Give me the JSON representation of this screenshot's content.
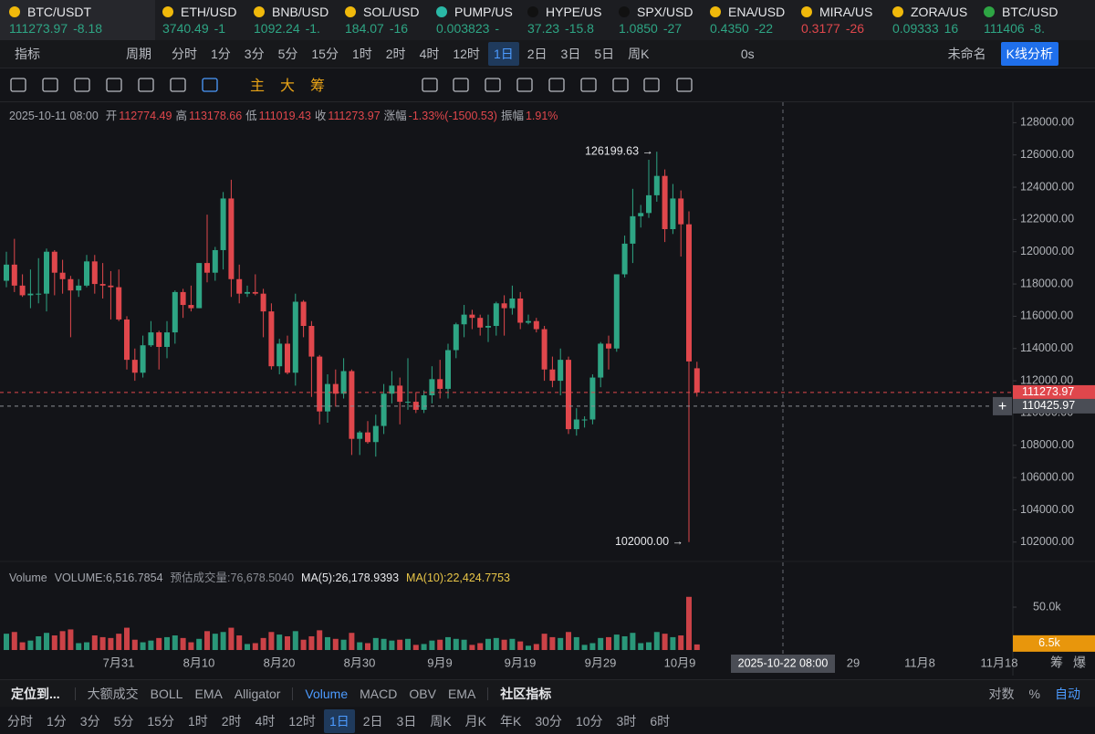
{
  "tickers": [
    {
      "name": "BTC/USDT",
      "price": "111273.97",
      "change": "-8.18",
      "color": "#2ea584"
    },
    {
      "name": "ETH/USD",
      "price": "3740.49",
      "change": "-1",
      "color": "#2ea584"
    },
    {
      "name": "BNB/USD",
      "price": "1092.24",
      "change": "-1.",
      "color": "#2ea584"
    },
    {
      "name": "SOL/USD",
      "price": "184.07",
      "change": "-16",
      "color": "#2ea584"
    },
    {
      "name": "PUMP/US",
      "price": "0.003823",
      "change": "-",
      "color": "#2ea584"
    },
    {
      "name": "HYPE/US",
      "price": "37.23",
      "change": "-15.8",
      "color": "#2ea584"
    },
    {
      "name": "SPX/USD",
      "price": "1.0850",
      "change": "-27",
      "color": "#2ea584"
    },
    {
      "name": "ENA/USD",
      "price": "0.4350",
      "change": "-22",
      "color": "#2ea584"
    },
    {
      "name": "MIRA/US",
      "price": "0.3177",
      "change": "-26",
      "color": "#e0474c"
    },
    {
      "name": "ZORA/US",
      "price": "0.09333",
      "change": "16",
      "color": "#2ea584"
    },
    {
      "name": "BTC/USD",
      "price": "111406",
      "change": "-8.",
      "color": "#2ea584"
    }
  ],
  "toolbar": {
    "indicator": "指标",
    "period": "周期",
    "intervals": [
      "分时",
      "1分",
      "3分",
      "5分",
      "15分",
      "1时",
      "2时",
      "4时",
      "12时",
      "1日",
      "2日",
      "3日",
      "5日",
      "周K"
    ],
    "active_interval": "1日",
    "timer": "0s",
    "layout_name": "未命名",
    "analysis": "K线分析"
  },
  "draw_tools": {
    "labels": [
      "主",
      "大",
      "筹"
    ]
  },
  "info": {
    "date": "2025-10-11 08:00",
    "fields": [
      {
        "label": "开",
        "value": "112774.49"
      },
      {
        "label": "高",
        "value": "113178.66"
      },
      {
        "label": "低",
        "value": "111019.43"
      },
      {
        "label": "收",
        "value": "111273.97"
      },
      {
        "label": "涨幅",
        "value": "-1.33%(-1500.53)"
      },
      {
        "label": "振幅",
        "value": "1.91%"
      }
    ]
  },
  "volume_header": {
    "name": "Volume",
    "volume": "VOLUME:6,516.7854",
    "estimate": "预估成交量:76,678.5040",
    "ma5": "MA(5):26,178.9393",
    "ma10": "MA(10):22,424.7753"
  },
  "chart": {
    "type": "candlestick",
    "up_color": "#2ea584",
    "down_color": "#e0474c",
    "ylim": [
      100800,
      128700
    ],
    "yticks": [
      {
        "value": 102000,
        "label": "102000.00"
      },
      {
        "value": 104000,
        "label": "104000.00"
      },
      {
        "value": 106000,
        "label": "106000.00"
      },
      {
        "value": 108000,
        "label": "108000.00"
      },
      {
        "value": 110000,
        "label": "110000.00"
      },
      {
        "value": 112000,
        "label": "112000.00"
      },
      {
        "value": 114000,
        "label": "114000.00"
      },
      {
        "value": 116000,
        "label": "116000.00"
      },
      {
        "value": 118000,
        "label": "118000.00"
      },
      {
        "value": 120000,
        "label": "120000.00"
      },
      {
        "value": 122000,
        "label": "122000.00"
      },
      {
        "value": 124000,
        "label": "124000.00"
      },
      {
        "value": 126000,
        "label": "126000.00"
      },
      {
        "value": 128000,
        "label": "128000.00"
      }
    ],
    "candles": [
      [
        118200,
        120000,
        117800,
        119200
      ],
      [
        119200,
        120800,
        117500,
        117900
      ],
      [
        117900,
        118600,
        117200,
        117300
      ],
      [
        117300,
        118900,
        116500,
        117400
      ],
      [
        117400,
        119600,
        116800,
        117400
      ],
      [
        117400,
        120200,
        116300,
        120000
      ],
      [
        120000,
        120100,
        117300,
        118700
      ],
      [
        118700,
        119500,
        117400,
        118300
      ],
      [
        118300,
        118500,
        114700,
        117600
      ],
      [
        117600,
        118300,
        117200,
        117900
      ],
      [
        117900,
        119800,
        117800,
        119400
      ],
      [
        119400,
        119800,
        117400,
        118000
      ],
      [
        118000,
        119300,
        117100,
        117900
      ],
      [
        117900,
        118800,
        115800,
        117800
      ],
      [
        117800,
        118900,
        115700,
        115800
      ],
      [
        115800,
        116000,
        112700,
        113300
      ],
      [
        113300,
        114000,
        112000,
        112500
      ],
      [
        112500,
        114800,
        112200,
        114200
      ],
      [
        114200,
        115700,
        114100,
        115000
      ],
      [
        115000,
        115100,
        112700,
        114100
      ],
      [
        114100,
        115700,
        113400,
        115000
      ],
      [
        115000,
        117600,
        114300,
        117500
      ],
      [
        117500,
        117700,
        115900,
        116700
      ],
      [
        116700,
        117900,
        116300,
        116500
      ],
      [
        116500,
        119300,
        116500,
        119300
      ],
      [
        119300,
        122300,
        118100,
        118700
      ],
      [
        118700,
        120300,
        118200,
        120100
      ],
      [
        120100,
        123700,
        118900,
        123300
      ],
      [
        123300,
        124460,
        117200,
        118300
      ],
      [
        118300,
        119200,
        116800,
        117400
      ],
      [
        117400,
        117900,
        117200,
        117500
      ],
      [
        117500,
        118600,
        117300,
        117400
      ],
      [
        117400,
        117700,
        114700,
        116300
      ],
      [
        116300,
        116800,
        112700,
        112900
      ],
      [
        112900,
        114600,
        112400,
        114300
      ],
      [
        114300,
        114800,
        112400,
        112500
      ],
      [
        112500,
        117400,
        111700,
        116900
      ],
      [
        116900,
        117000,
        114700,
        115400
      ],
      [
        115400,
        115700,
        111000,
        113500
      ],
      [
        113500,
        113600,
        109300,
        110100
      ],
      [
        110100,
        112400,
        109400,
        111800
      ],
      [
        111800,
        112700,
        110400,
        111200
      ],
      [
        111200,
        113400,
        110900,
        112600
      ],
      [
        112600,
        112700,
        107400,
        108400
      ],
      [
        108400,
        108900,
        107400,
        108800
      ],
      [
        108800,
        109500,
        108100,
        108200
      ],
      [
        108200,
        109900,
        107300,
        109200
      ],
      [
        109200,
        111800,
        108700,
        111200
      ],
      [
        111200,
        112600,
        110600,
        111700
      ],
      [
        111700,
        112200,
        109300,
        110700
      ],
      [
        110700,
        113400,
        110200,
        110700
      ],
      [
        110700,
        111300,
        110000,
        110200
      ],
      [
        110200,
        111400,
        110000,
        111100
      ],
      [
        111100,
        112900,
        110600,
        112100
      ],
      [
        112100,
        113300,
        110900,
        111500
      ],
      [
        111500,
        114300,
        110900,
        113900
      ],
      [
        113900,
        115600,
        113400,
        115500
      ],
      [
        115500,
        116700,
        114700,
        116100
      ],
      [
        116100,
        116400,
        115200,
        115900
      ],
      [
        115900,
        116100,
        114800,
        115300
      ],
      [
        115300,
        116100,
        114400,
        115400
      ],
      [
        115400,
        116900,
        114800,
        116800
      ],
      [
        116800,
        117300,
        114800,
        116500
      ],
      [
        116500,
        117900,
        116100,
        117100
      ],
      [
        117100,
        117500,
        115200,
        115600
      ],
      [
        115600,
        116100,
        115500,
        115700
      ],
      [
        115700,
        115900,
        115000,
        115200
      ],
      [
        115200,
        115400,
        112000,
        112700
      ],
      [
        112700,
        113500,
        111600,
        112000
      ],
      [
        112000,
        114000,
        111100,
        113300
      ],
      [
        113300,
        113500,
        108700,
        109000
      ],
      [
        109000,
        110300,
        108600,
        109600
      ],
      [
        109600,
        109800,
        109100,
        109600
      ],
      [
        109600,
        112400,
        109300,
        112200
      ],
      [
        112200,
        114400,
        111600,
        114300
      ],
      [
        114300,
        114800,
        112700,
        114000
      ],
      [
        114000,
        118600,
        113800,
        118600
      ],
      [
        118600,
        121000,
        118400,
        120500
      ],
      [
        120500,
        123900,
        119300,
        122200
      ],
      [
        122200,
        122900,
        121500,
        122400
      ],
      [
        122400,
        125700,
        122100,
        123500
      ],
      [
        123500,
        126199.63,
        123100,
        124700
      ],
      [
        124700,
        125100,
        120600,
        121400
      ],
      [
        121400,
        124200,
        121100,
        123300
      ],
      [
        123300,
        123800,
        119700,
        121700
      ],
      [
        121700,
        122500,
        102000,
        113200
      ],
      [
        112774.49,
        113178.66,
        111019.43,
        111273.97
      ]
    ],
    "high_label": "126199.63 →",
    "low_label": "102000.00 →",
    "last_price": {
      "value": 111273.97,
      "label": "111273.97"
    },
    "crosshair": {
      "value": 110425.97,
      "label": "110425.97",
      "date": "2025-10-22 08:00"
    },
    "xlabels": [
      "7月31",
      "8月10",
      "8月20",
      "8月30",
      "9月9",
      "9月19",
      "9月29",
      "10月9",
      "29",
      "11月8",
      "11月18"
    ],
    "side_labels": [
      "筹",
      "爆"
    ],
    "volume": {
      "ylim": [
        0,
        66000
      ],
      "yticks": [
        {
          "value": 50000,
          "label": "50.0k"
        }
      ],
      "current_label": "6.5k",
      "values": [
        19000,
        21000,
        9000,
        11000,
        16000,
        20000,
        17000,
        22000,
        24000,
        8000,
        9000,
        17000,
        15000,
        14000,
        19000,
        26000,
        12000,
        9000,
        11000,
        14000,
        15000,
        17000,
        14000,
        9000,
        13000,
        22000,
        19000,
        21000,
        26000,
        17000,
        7000,
        8000,
        14000,
        21000,
        18000,
        16000,
        22000,
        12000,
        16000,
        23000,
        15000,
        13000,
        12000,
        20000,
        9000,
        8000,
        14000,
        13000,
        11000,
        12000,
        13000,
        6000,
        7000,
        11000,
        12000,
        15000,
        13000,
        12000,
        6000,
        8000,
        13000,
        14000,
        12000,
        13000,
        10000,
        5000,
        7000,
        19000,
        15000,
        14000,
        21000,
        15000,
        6000,
        8000,
        14000,
        15000,
        18000,
        16000,
        20000,
        8000,
        9000,
        21000,
        19000,
        15000,
        17000,
        62000,
        6516.7854
      ]
    }
  },
  "bottom": {
    "locate": "定位到...",
    "main_indicators": [
      "大额成交",
      "BOLL",
      "EMA",
      "Alligator"
    ],
    "sub_indicators": [
      "Volume",
      "MACD",
      "OBV",
      "EMA"
    ],
    "active_sub": "Volume",
    "community": "社区指标",
    "right": [
      "对数",
      "%",
      "自动"
    ],
    "active_right": "自动",
    "intervals": [
      "分时",
      "1分",
      "3分",
      "5分",
      "15分",
      "1时",
      "2时",
      "4时",
      "12时",
      "1日",
      "2日",
      "3日",
      "周K",
      "月K",
      "年K",
      "30分",
      "10分",
      "3时",
      "6时"
    ],
    "active_interval": "1日"
  }
}
